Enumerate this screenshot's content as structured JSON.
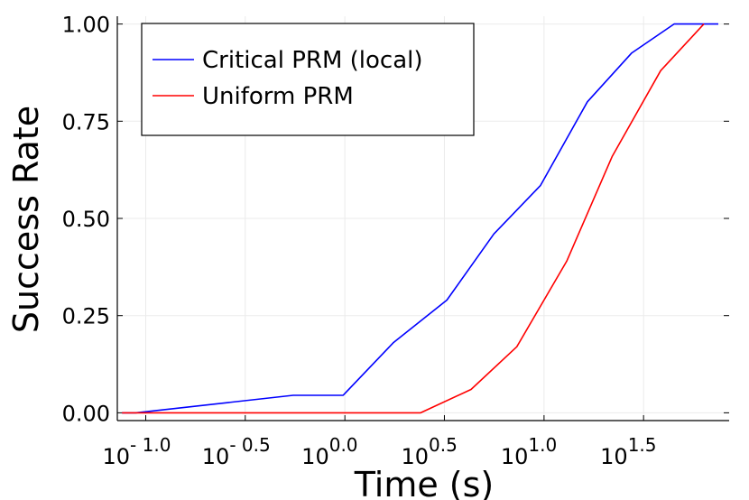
{
  "chart_data": {
    "type": "line",
    "xlabel": "Time (s)",
    "ylabel": "Success Rate",
    "xscale": "log10",
    "xlim": [
      0.072,
      85
    ],
    "ylim": [
      -0.02,
      1.02
    ],
    "grid": true,
    "legend_position": "top-left",
    "x_ticks": [
      {
        "value": 0.1,
        "base": "10",
        "exp": "- 1.0"
      },
      {
        "value": 0.316,
        "base": "10",
        "exp": "- 0.5"
      },
      {
        "value": 1.0,
        "base": "10",
        "exp": "0.0"
      },
      {
        "value": 3.16,
        "base": "10",
        "exp": "0.5"
      },
      {
        "value": 10.0,
        "base": "10",
        "exp": "1.0"
      },
      {
        "value": 31.6,
        "base": "10",
        "exp": "1.5"
      }
    ],
    "y_ticks": [
      {
        "value": 0.0,
        "label": "0.00"
      },
      {
        "value": 0.25,
        "label": "0.25"
      },
      {
        "value": 0.5,
        "label": "0.50"
      },
      {
        "value": 0.75,
        "label": "0.75"
      },
      {
        "value": 1.0,
        "label": "1.00"
      }
    ],
    "series": [
      {
        "name": "Critical PRM (local)",
        "color": "#0000ff",
        "x": [
          0.076,
          0.089,
          0.55,
          0.98,
          1.75,
          3.25,
          5.6,
          9.6,
          16.5,
          27.5,
          45.0,
          75.0
        ],
        "y": [
          0.0,
          0.0,
          0.045,
          0.045,
          0.18,
          0.29,
          0.46,
          0.585,
          0.8,
          0.925,
          1.0,
          1.0
        ]
      },
      {
        "name": "Uniform PRM",
        "color": "#ff0000",
        "x": [
          0.076,
          2.4,
          4.3,
          7.3,
          13.0,
          22.0,
          38.5,
          63.5
        ],
        "y": [
          0.0,
          0.0,
          0.06,
          0.17,
          0.39,
          0.66,
          0.88,
          1.0
        ]
      }
    ]
  }
}
